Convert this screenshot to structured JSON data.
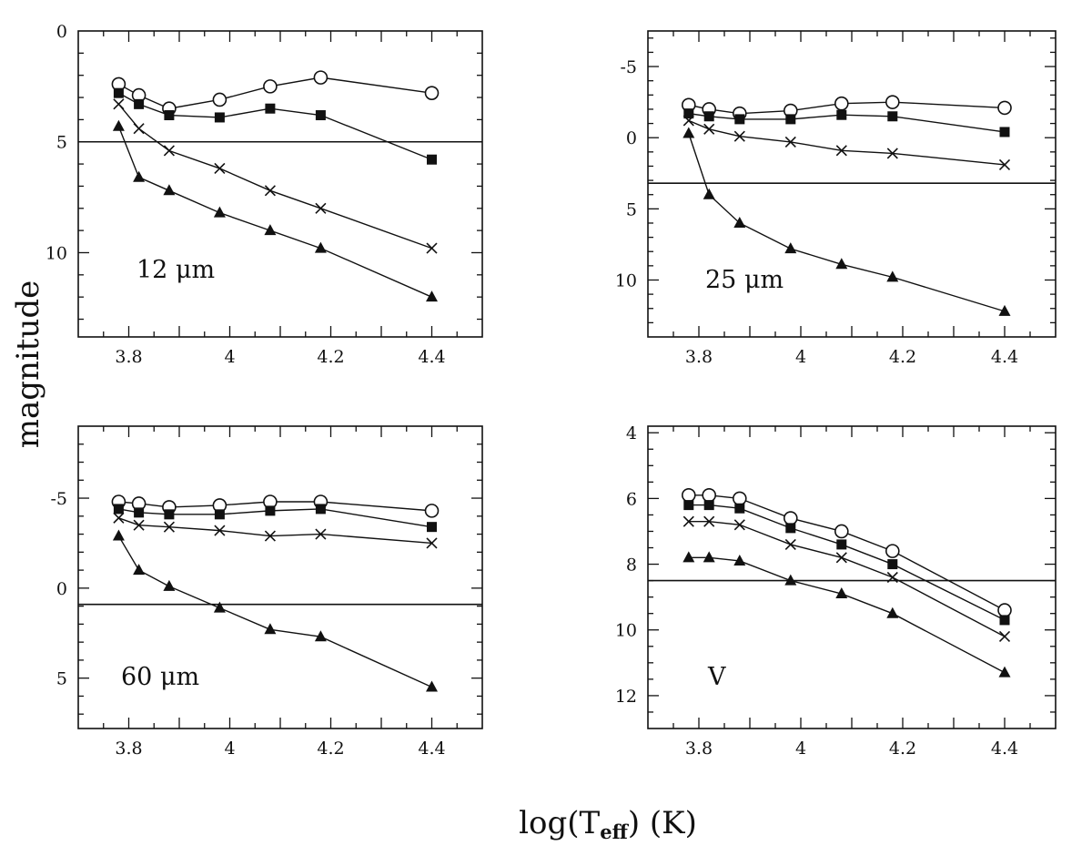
{
  "figure": {
    "ylabel": "magnitude",
    "xlabel_prefix": "log(T",
    "xlabel_sub": "eff",
    "xlabel_suffix": ")  (K)"
  },
  "chart_data": [
    {
      "type": "line",
      "label": "12 μm",
      "x_ticks": [
        "3.8",
        "4",
        "4.2",
        "4.4"
      ],
      "y_ticks": [
        "0",
        "5",
        "10"
      ],
      "xlim": [
        3.7,
        4.5
      ],
      "ylim": [
        13.8,
        0
      ],
      "y_inverted": true,
      "reference_line": 5.0,
      "x": [
        3.78,
        3.82,
        3.88,
        3.98,
        4.08,
        4.18,
        4.4
      ],
      "series": [
        {
          "marker": "open-circle",
          "values": [
            2.4,
            2.9,
            3.5,
            3.1,
            2.5,
            2.1,
            2.8
          ]
        },
        {
          "marker": "filled-square",
          "values": [
            2.8,
            3.3,
            3.8,
            3.9,
            3.5,
            3.8,
            5.8
          ]
        },
        {
          "marker": "cross",
          "values": [
            3.3,
            4.4,
            5.4,
            6.2,
            7.2,
            8.0,
            9.8
          ]
        },
        {
          "marker": "filled-triangle",
          "values": [
            4.3,
            6.6,
            7.2,
            8.2,
            9.0,
            9.8,
            12.0
          ]
        }
      ]
    },
    {
      "type": "line",
      "label": "25 μm",
      "x_ticks": [
        "3.8",
        "4",
        "4.2",
        "4.4"
      ],
      "y_ticks": [
        "-5",
        "0",
        "5",
        "10"
      ],
      "xlim": [
        3.7,
        4.5
      ],
      "ylim": [
        14.0,
        -7.5
      ],
      "y_inverted": true,
      "reference_line": 3.2,
      "x": [
        3.78,
        3.82,
        3.88,
        3.98,
        4.08,
        4.18,
        4.4
      ],
      "series": [
        {
          "marker": "open-circle",
          "values": [
            -2.3,
            -2.0,
            -1.7,
            -1.9,
            -2.4,
            -2.5,
            -2.1
          ]
        },
        {
          "marker": "filled-square",
          "values": [
            -1.7,
            -1.5,
            -1.3,
            -1.3,
            -1.6,
            -1.5,
            -0.4
          ]
        },
        {
          "marker": "cross",
          "values": [
            -1.2,
            -0.6,
            -0.1,
            0.3,
            0.9,
            1.1,
            1.9
          ]
        },
        {
          "marker": "filled-triangle",
          "values": [
            -0.3,
            4.0,
            6.0,
            7.8,
            8.9,
            9.8,
            12.2
          ]
        }
      ]
    },
    {
      "type": "line",
      "label": "60 μm",
      "x_ticks": [
        "3.8",
        "4",
        "4.2",
        "4.4"
      ],
      "y_ticks": [
        "-5",
        "0",
        "5"
      ],
      "xlim": [
        3.7,
        4.5
      ],
      "ylim": [
        7.8,
        -9.0
      ],
      "y_inverted": true,
      "reference_line": 0.9,
      "x": [
        3.78,
        3.82,
        3.88,
        3.98,
        4.08,
        4.18,
        4.4
      ],
      "series": [
        {
          "marker": "open-circle",
          "values": [
            -4.8,
            -4.7,
            -4.5,
            -4.6,
            -4.8,
            -4.8,
            -4.3
          ]
        },
        {
          "marker": "filled-square",
          "values": [
            -4.4,
            -4.2,
            -4.1,
            -4.1,
            -4.3,
            -4.4,
            -3.4
          ]
        },
        {
          "marker": "cross",
          "values": [
            -3.9,
            -3.5,
            -3.4,
            -3.2,
            -2.9,
            -3.0,
            -2.5
          ]
        },
        {
          "marker": "filled-triangle",
          "values": [
            -2.9,
            -1.0,
            -0.1,
            1.1,
            2.3,
            2.7,
            5.5
          ]
        }
      ]
    },
    {
      "type": "line",
      "label": "V",
      "x_ticks": [
        "3.8",
        "4",
        "4.2",
        "4.4"
      ],
      "y_ticks": [
        "4",
        "6",
        "8",
        "10",
        "12"
      ],
      "xlim": [
        3.7,
        4.5
      ],
      "ylim": [
        13.0,
        3.8
      ],
      "y_inverted": true,
      "reference_line": 8.5,
      "x": [
        3.78,
        3.82,
        3.88,
        3.98,
        4.08,
        4.18,
        4.4
      ],
      "series": [
        {
          "marker": "open-circle",
          "values": [
            5.9,
            5.9,
            6.0,
            6.6,
            7.0,
            7.6,
            9.4
          ]
        },
        {
          "marker": "filled-square",
          "values": [
            6.2,
            6.2,
            6.3,
            6.9,
            7.4,
            8.0,
            9.7
          ]
        },
        {
          "marker": "cross",
          "values": [
            6.7,
            6.7,
            6.8,
            7.4,
            7.8,
            8.4,
            10.2
          ]
        },
        {
          "marker": "filled-triangle",
          "values": [
            7.8,
            7.8,
            7.9,
            8.5,
            8.9,
            9.5,
            11.3
          ]
        }
      ]
    }
  ]
}
